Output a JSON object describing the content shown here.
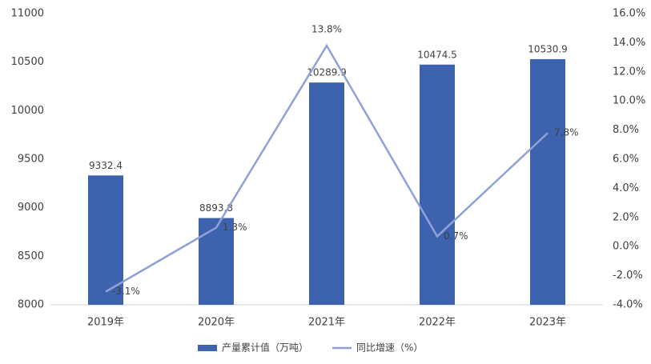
{
  "chart_data": {
    "type": "bar",
    "categories": [
      "2019年",
      "2020年",
      "2021年",
      "2022年",
      "2023年"
    ],
    "series": [
      {
        "name": "产量累计值（万吨）",
        "type": "bar",
        "axis": "y",
        "color": "#3d62ae",
        "values": [
          9332.4,
          8893.8,
          10289.9,
          10474.5,
          10530.9
        ]
      },
      {
        "name": "同比增速（%）",
        "type": "line",
        "axis": "y2",
        "color": "#8fa2d6",
        "values": [
          -3.1,
          1.3,
          13.8,
          0.7,
          7.8
        ],
        "value_labels": [
          "-3.1%",
          "1.3%",
          "13.8%",
          "0.7%",
          "7.8%"
        ]
      }
    ],
    "ylim": [
      8000,
      11000
    ],
    "yticks": [
      8000,
      8500,
      9000,
      9500,
      10000,
      10500,
      11000
    ],
    "y2lim": [
      -4,
      16
    ],
    "y2ticks": [
      {
        "value": -4,
        "label": "-4.0%"
      },
      {
        "value": -2,
        "label": "-2.0%"
      },
      {
        "value": 0,
        "label": "0.0%"
      },
      {
        "value": 2,
        "label": "2.0%"
      },
      {
        "value": 4,
        "label": "4.0%"
      },
      {
        "value": 6,
        "label": "6.0%"
      },
      {
        "value": 8,
        "label": "8.0%"
      },
      {
        "value": 10,
        "label": "10.0%"
      },
      {
        "value": 12,
        "label": "12.0%"
      },
      {
        "value": 14,
        "label": "14.0%"
      },
      {
        "value": 16,
        "label": "16.0%"
      }
    ],
    "legend": "bottom"
  }
}
